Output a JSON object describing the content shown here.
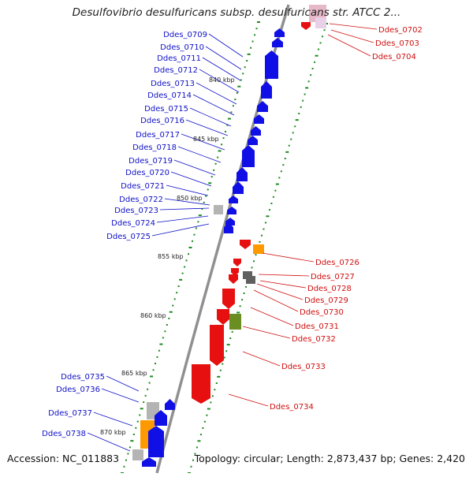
{
  "title": "Desulfovibrio desulfuricans subsp. desulfuricans str. ATCC 2...",
  "footer": {
    "accession": "Accession: NC_011883",
    "summary": "Topology: circular; Length: 2,873,437 bp; Genes: 2,420"
  },
  "colors": {
    "plus_strand": "#1010e6",
    "minus_strand": "#e61010",
    "rna_orange": "#ff9900",
    "pseudo_gray": "#b4b4b4",
    "dark_gray": "#606060",
    "olive": "#6b8e23",
    "backbone": "#909090",
    "tick_green": "#1e8a1e",
    "left_label": "#1010c8",
    "right_label": "#d01010"
  },
  "scale_labels": [
    "840 kbp",
    "845 kbp",
    "850 kbp",
    "855 kbp",
    "860 kbp",
    "865 kbp",
    "870 kbp"
  ],
  "left_genes": [
    "Ddes_0709",
    "Ddes_0710",
    "Ddes_0711",
    "Ddes_0712",
    "Ddes_0713",
    "Ddes_0714",
    "Ddes_0715",
    "Ddes_0716",
    "Ddes_0717",
    "Ddes_0718",
    "Ddes_0719",
    "Ddes_0720",
    "Ddes_0721",
    "Ddes_0722",
    "Ddes_0723",
    "Ddes_0724",
    "Ddes_0725",
    "Ddes_0735",
    "Ddes_0736",
    "Ddes_0737",
    "Ddes_0738"
  ],
  "right_genes": [
    "Ddes_0702",
    "Ddes_0703",
    "Ddes_0704",
    "Ddes_0726",
    "Ddes_0727",
    "Ddes_0728",
    "Ddes_0729",
    "Ddes_0730",
    "Ddes_0731",
    "Ddes_0732",
    "Ddes_0733",
    "Ddes_0734"
  ]
}
